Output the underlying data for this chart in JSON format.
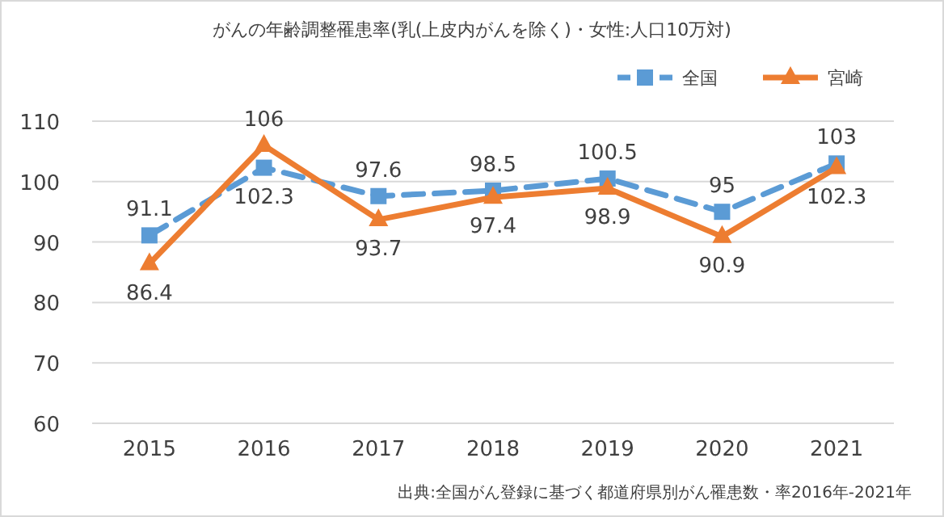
{
  "chart_data": {
    "type": "line",
    "title": "がんの年齢調整罹患率(乳(上皮内がんを除く)・女性:人口10万対)",
    "categories": [
      "2015",
      "2016",
      "2017",
      "2018",
      "2019",
      "2020",
      "2021"
    ],
    "series": [
      {
        "name": "全国",
        "color": "#5b9bd5",
        "marker": "square",
        "line_style": "dashed",
        "values": [
          91.1,
          102.3,
          97.6,
          98.5,
          100.5,
          95,
          103
        ]
      },
      {
        "name": "宮崎",
        "color": "#ed7d31",
        "marker": "triangle",
        "line_style": "solid",
        "values": [
          86.4,
          106,
          93.7,
          97.4,
          98.9,
          90.9,
          102.3
        ]
      }
    ],
    "ylim": [
      60,
      110
    ],
    "yticks": [
      60,
      70,
      80,
      90,
      100,
      110
    ],
    "grid": "y",
    "legend": "top right",
    "data_labels": true,
    "annotations": [
      "出典:全国がん登録に基づく都道府県別がん罹患数・率2016年-2021年"
    ]
  }
}
